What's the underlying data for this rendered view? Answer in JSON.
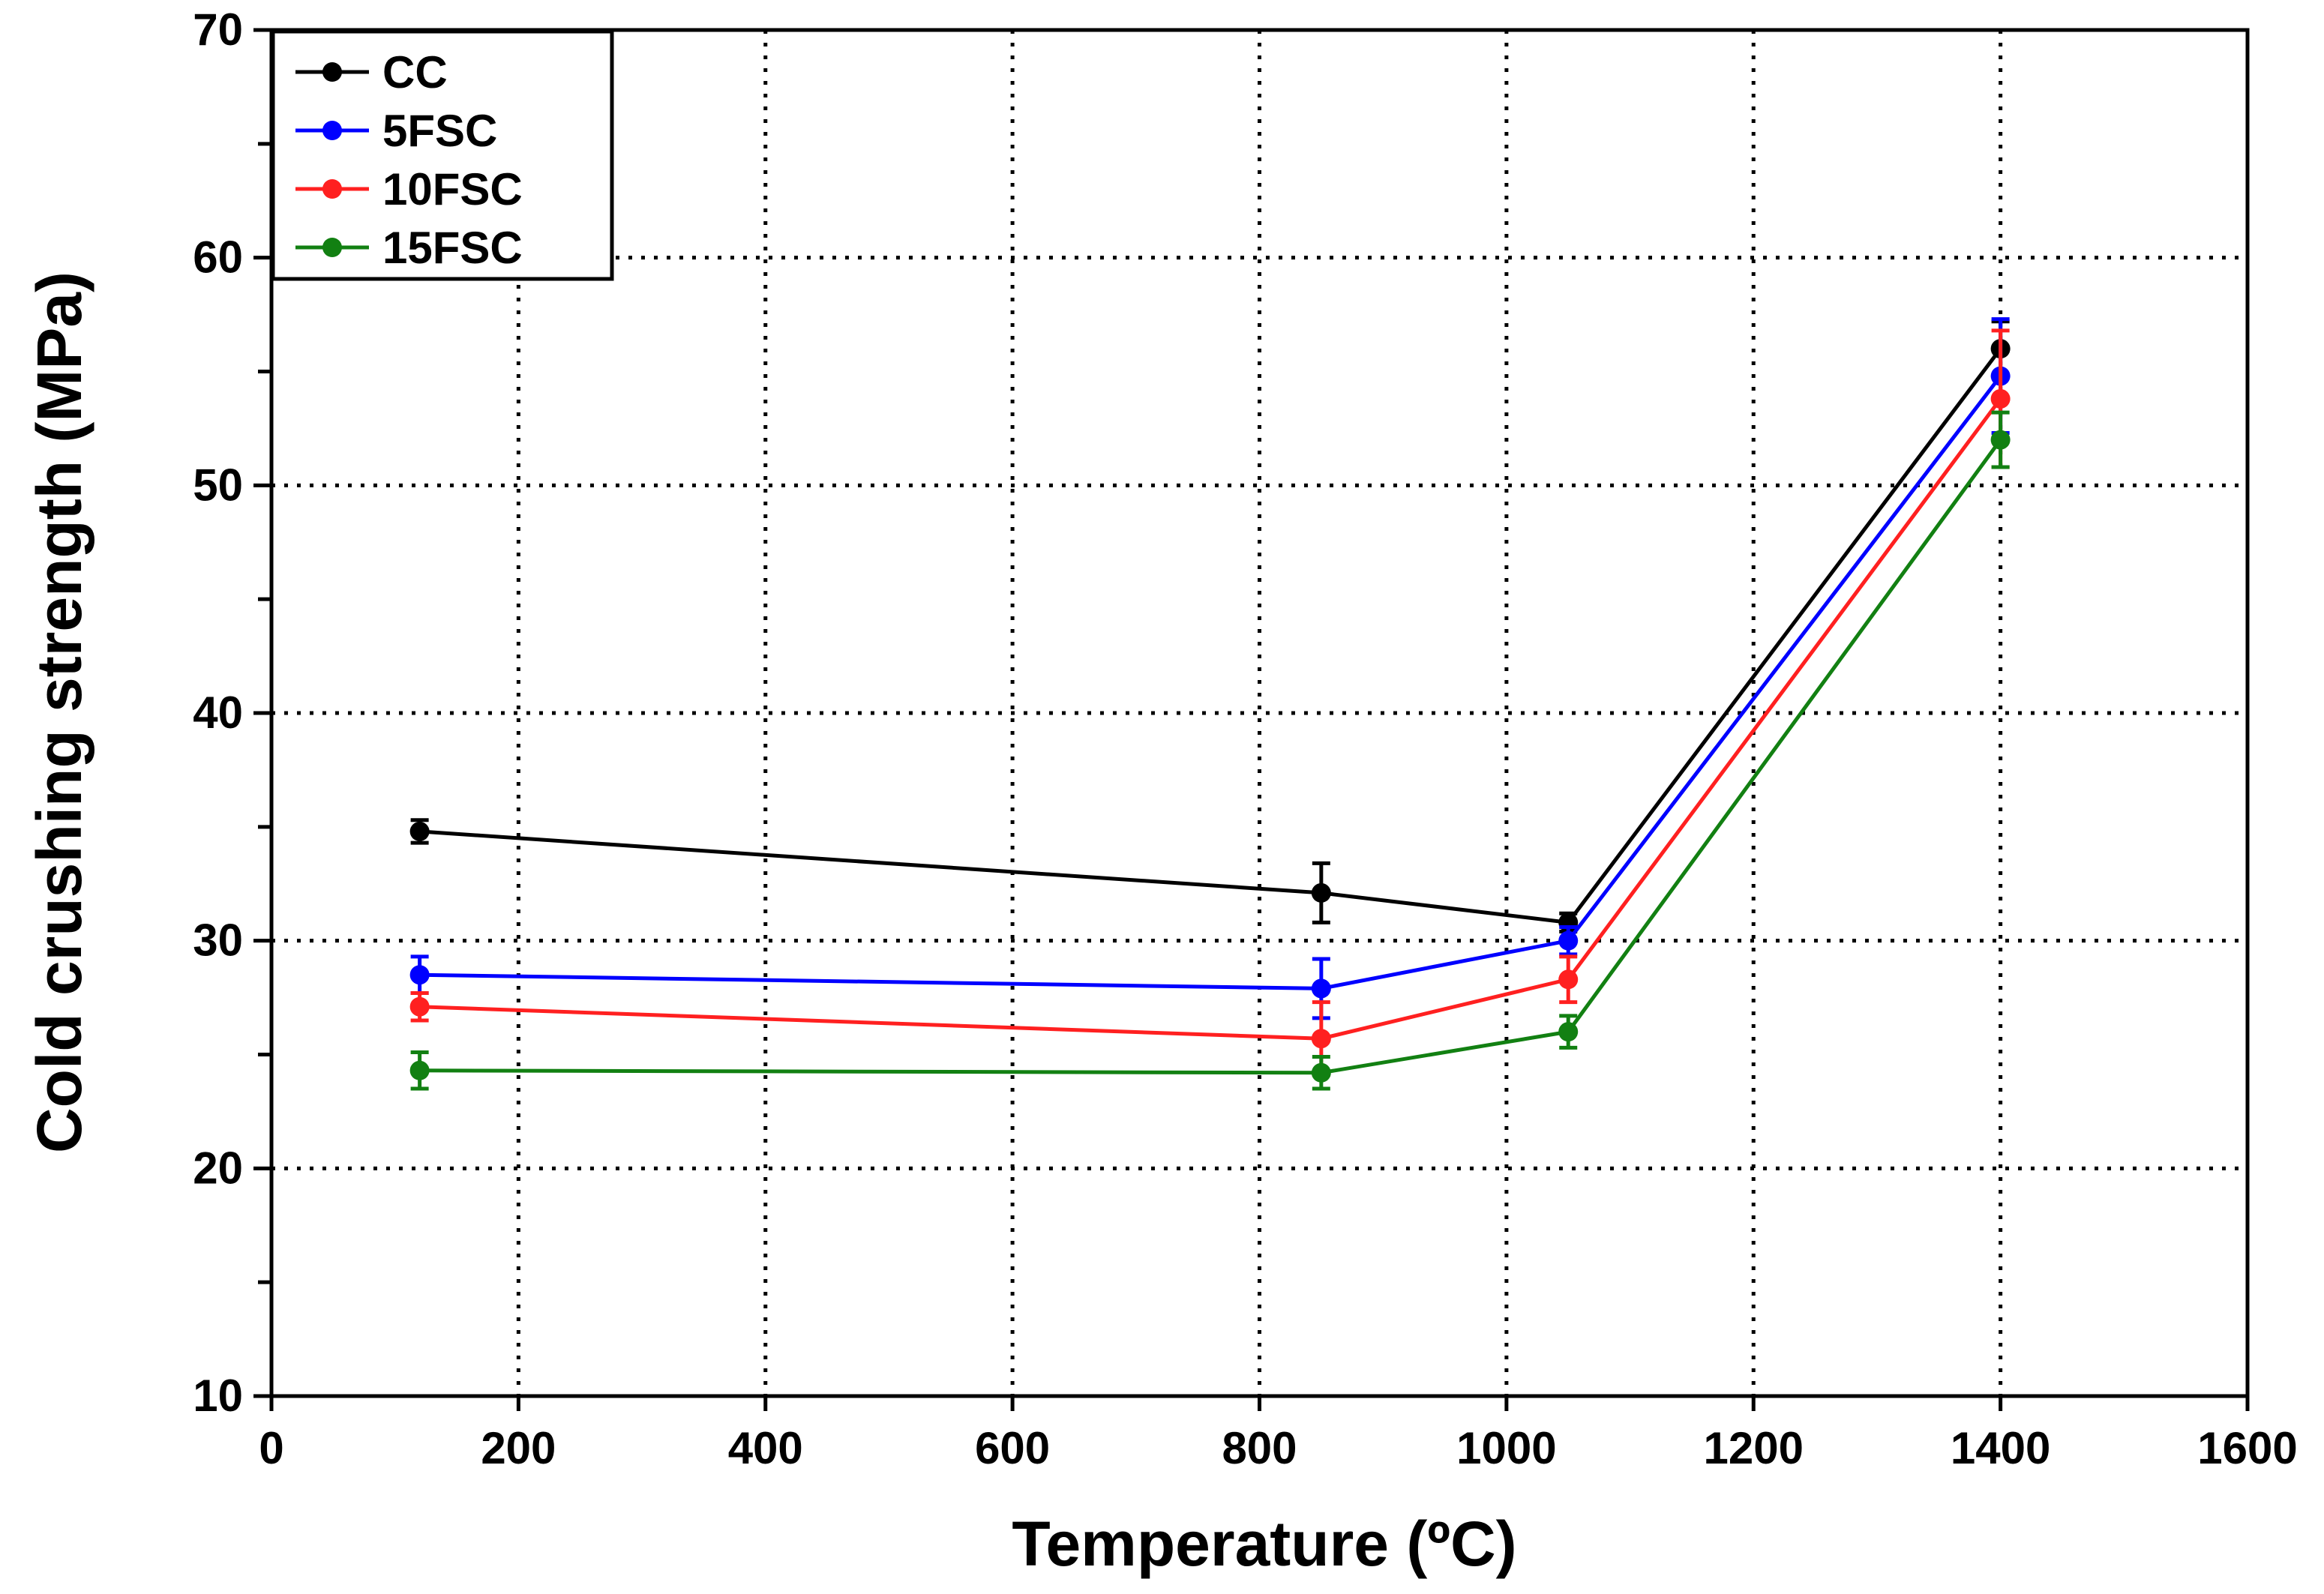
{
  "chart_data": {
    "type": "line",
    "title": "",
    "xlabel": "Temperature (ºC)",
    "ylabel": "Cold crushing strength (MPa)",
    "xlim": [
      0,
      1600
    ],
    "ylim": [
      10,
      70
    ],
    "x_ticks": [
      0,
      200,
      400,
      600,
      800,
      1000,
      1200,
      1400,
      1600
    ],
    "y_ticks": [
      10,
      20,
      30,
      40,
      50,
      60,
      70
    ],
    "grid": true,
    "legend_position": "top-left",
    "x": [
      120,
      850,
      1050,
      1400
    ],
    "series": [
      {
        "name": "CC",
        "color": "#000000",
        "values": [
          34.8,
          32.1,
          30.8,
          56.0
        ],
        "errors": [
          0.5,
          1.3,
          0.4,
          1.2
        ]
      },
      {
        "name": "5FSC",
        "color": "#0000ff",
        "values": [
          28.5,
          27.9,
          30.0,
          54.8
        ],
        "errors": [
          0.8,
          1.3,
          0.6,
          2.5
        ]
      },
      {
        "name": "10FSC",
        "color": "#ff2020",
        "values": [
          27.1,
          25.7,
          28.3,
          53.8
        ],
        "errors": [
          0.6,
          1.6,
          1.0,
          3.0
        ]
      },
      {
        "name": "15FSC",
        "color": "#128012",
        "values": [
          24.3,
          24.2,
          26.0,
          52.0
        ],
        "errors": [
          0.8,
          0.7,
          0.7,
          1.2
        ]
      }
    ]
  }
}
